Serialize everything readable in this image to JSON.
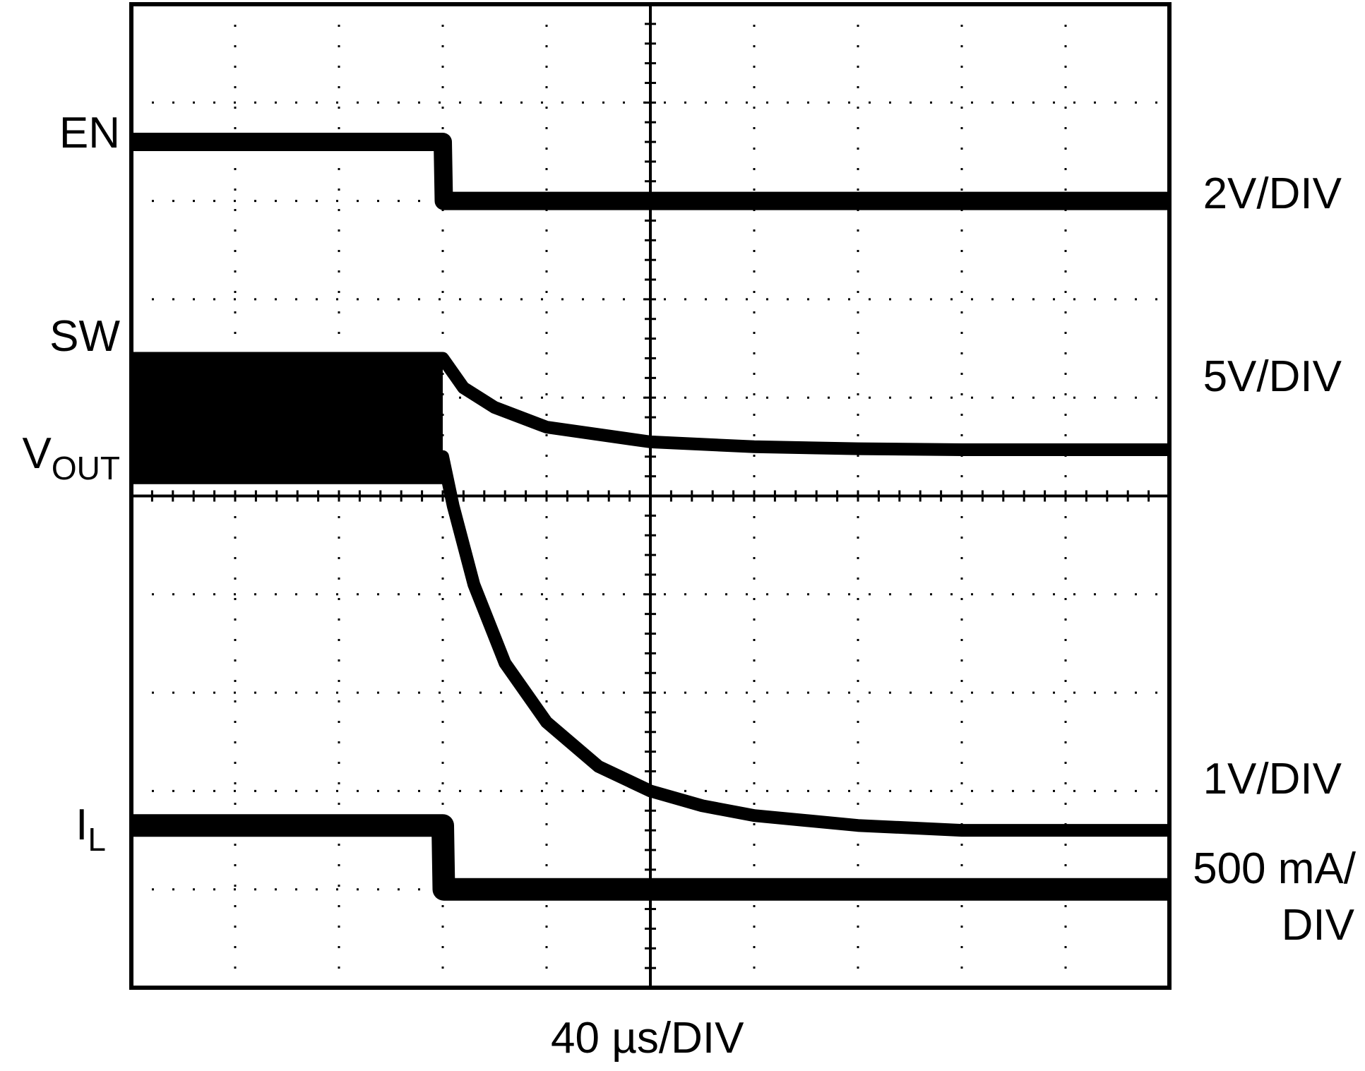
{
  "chart_data": {
    "type": "line",
    "title": "",
    "timebase": "40 µs/DIV",
    "grid": true,
    "divisions": {
      "x": 10,
      "y": 10
    },
    "xlim": [
      0,
      10
    ],
    "ylim": [
      0,
      10
    ],
    "series": [
      {
        "name": "EN",
        "scale": "2V/DIV",
        "x": [
          0,
          3,
          3.01,
          10
        ],
        "y": [
          8.6,
          8.6,
          8.0,
          8.0
        ]
      },
      {
        "name": "SW",
        "scale": "5V/DIV",
        "x": [
          0,
          3,
          3.2,
          3.5,
          4,
          5,
          6,
          7,
          8,
          10
        ],
        "y": [
          6.4,
          6.4,
          6.1,
          5.9,
          5.7,
          5.55,
          5.5,
          5.48,
          5.47,
          5.47
        ]
      },
      {
        "name": "VOUT",
        "scale": "1V/DIV",
        "x": [
          0,
          3,
          3.1,
          3.3,
          3.6,
          4,
          4.5,
          5,
          5.5,
          6,
          7,
          8,
          9,
          10
        ],
        "y": [
          5.4,
          5.4,
          4.9,
          4.1,
          3.3,
          2.7,
          2.25,
          2.0,
          1.85,
          1.75,
          1.65,
          1.6,
          1.6,
          1.6
        ]
      },
      {
        "name": "IL",
        "scale": "500 mA/DIV",
        "x": [
          0,
          3,
          3.01,
          10
        ],
        "y": [
          1.65,
          1.65,
          1.0,
          1.0
        ]
      }
    ]
  },
  "labels": {
    "en": "EN",
    "sw": "SW",
    "vout_main": "V",
    "vout_sub": "OUT",
    "il_main": "I",
    "il_sub": "L",
    "en_scale": "2V/DIV",
    "sw_scale": "5V/DIV",
    "vout_scale": "1V/DIV",
    "il_scale_1": "500 mA/",
    "il_scale_2": "DIV",
    "xaxis": "40 µs/DIV"
  }
}
